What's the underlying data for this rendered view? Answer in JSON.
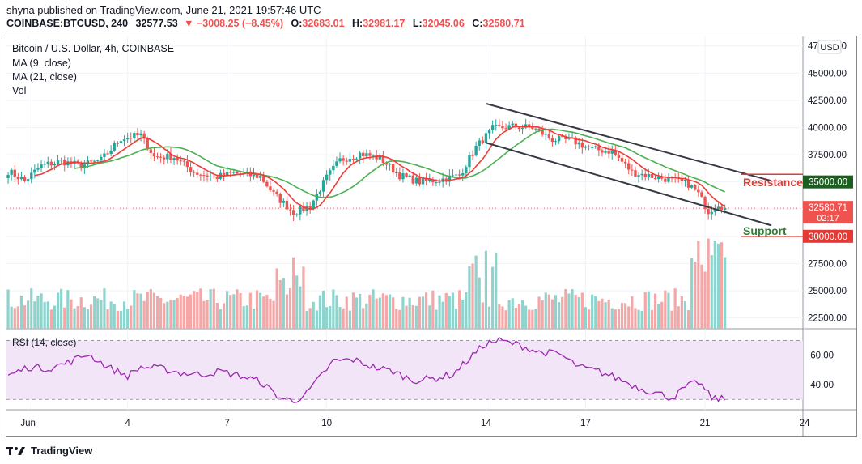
{
  "header": {
    "publish_line": "shyna published on TradingView.com, June 21, 2021 19:57:46 UTC",
    "symbol": "COINBASE:BTCUSD, 240",
    "last": "32577.53",
    "down_arrow": "▼",
    "change": "−3008.25 (−8.45%)",
    "o_label": "O:",
    "o_value": "32683.01",
    "h_label": "H:",
    "h_value": "32981.17",
    "l_label": "L:",
    "l_value": "32045.06",
    "c_label": "C:",
    "c_value": "32580.71"
  },
  "legend": {
    "title": "Bitcoin / U.S. Dollar, 4h, COINBASE",
    "ma9": "MA (9, close)",
    "ma21": "MA (21, close)",
    "vol": "Vol",
    "rsi": "RSI (14, close)"
  },
  "currency_badge": "USD",
  "annotations": {
    "resistance": "Resistance",
    "support": "Support",
    "resistance_price": "35000.00",
    "support_price": "30000.00",
    "current_price": "32580.71",
    "countdown": "02:17"
  },
  "footer": {
    "brand": "TradingView"
  },
  "colors": {
    "up": "#26a69a",
    "down": "#ef5350",
    "up_vol": "#8fd3cd",
    "down_vol": "#f5a6a6",
    "ma9": "#ef3b36",
    "ma21": "#4caf50",
    "rsi": "#9c27b0",
    "rsi_band": "#f3e5f8",
    "resistance": "#e53935",
    "support": "#2e7d32",
    "trendline": "#363a45"
  },
  "chart_data": {
    "type": "candlestick",
    "timeframe": "4h",
    "price_axis": {
      "ticks": [
        22500,
        25000,
        27500,
        30000,
        32500,
        35000,
        37500,
        40000,
        42500,
        45000,
        47500
      ],
      "tick_labels": [
        "22500.00",
        "25000.00",
        "27500.00",
        "30000.00",
        "32500.00",
        "35000.00",
        "37500.00",
        "40000.00",
        "42500.00",
        "45000.00",
        "47500.00"
      ],
      "range": [
        21500,
        48300
      ]
    },
    "rsi_axis": {
      "ticks": [
        40,
        60
      ],
      "tick_labels": [
        "40.00",
        "60.00"
      ],
      "band": [
        30,
        70
      ],
      "range": [
        23,
        78
      ]
    },
    "x_axis": {
      "labels": [
        "Jun",
        "4",
        "7",
        "10",
        "14",
        "17",
        "21",
        "24"
      ],
      "label_bar_index": [
        6,
        36,
        66,
        96,
        144,
        174,
        210,
        240
      ]
    },
    "bar_count": 240,
    "close_anchors": [
      [
        0,
        36000
      ],
      [
        5,
        35100
      ],
      [
        10,
        36500
      ],
      [
        16,
        36900
      ],
      [
        22,
        36500
      ],
      [
        28,
        37000
      ],
      [
        34,
        39000
      ],
      [
        40,
        39300
      ],
      [
        44,
        37300
      ],
      [
        50,
        37300
      ],
      [
        56,
        35900
      ],
      [
        62,
        35400
      ],
      [
        68,
        35800
      ],
      [
        76,
        35500
      ],
      [
        80,
        33900
      ],
      [
        86,
        32200
      ],
      [
        91,
        32800
      ],
      [
        96,
        35400
      ],
      [
        100,
        37000
      ],
      [
        106,
        37600
      ],
      [
        112,
        37200
      ],
      [
        118,
        35600
      ],
      [
        124,
        35000
      ],
      [
        130,
        35200
      ],
      [
        136,
        35600
      ],
      [
        141,
        38200
      ],
      [
        146,
        39900
      ],
      [
        152,
        40100
      ],
      [
        158,
        40000
      ],
      [
        164,
        38900
      ],
      [
        170,
        38800
      ],
      [
        176,
        38000
      ],
      [
        182,
        37800
      ],
      [
        188,
        35900
      ],
      [
        194,
        35500
      ],
      [
        200,
        35200
      ],
      [
        205,
        34800
      ],
      [
        208,
        33900
      ],
      [
        211,
        32300
      ],
      [
        214,
        33000
      ],
      [
        216,
        32580
      ]
    ],
    "last_bar_index": 216,
    "annotated_levels": {
      "resistance": 35000,
      "support": 30000,
      "last_close": 32580.71
    },
    "trendlines": [
      {
        "name": "upper",
        "from": [
          144,
          42200
        ],
        "to": [
          230,
          35100
        ]
      },
      {
        "name": "lower",
        "from": [
          144,
          38600
        ],
        "to": [
          230,
          31000
        ]
      }
    ],
    "rsi_anchors": [
      [
        0,
        46
      ],
      [
        6,
        52
      ],
      [
        12,
        51
      ],
      [
        18,
        55
      ],
      [
        24,
        61
      ],
      [
        30,
        52
      ],
      [
        36,
        46
      ],
      [
        40,
        52
      ],
      [
        46,
        51
      ],
      [
        52,
        48
      ],
      [
        58,
        47
      ],
      [
        64,
        49
      ],
      [
        70,
        46
      ],
      [
        76,
        42
      ],
      [
        82,
        31
      ],
      [
        86,
        29
      ],
      [
        90,
        34
      ],
      [
        94,
        45
      ],
      [
        98,
        56
      ],
      [
        104,
        57
      ],
      [
        110,
        52
      ],
      [
        116,
        49
      ],
      [
        122,
        43
      ],
      [
        128,
        44
      ],
      [
        134,
        47
      ],
      [
        140,
        60
      ],
      [
        144,
        68
      ],
      [
        148,
        70
      ],
      [
        154,
        67
      ],
      [
        160,
        62
      ],
      [
        166,
        61
      ],
      [
        172,
        52
      ],
      [
        178,
        49
      ],
      [
        184,
        44
      ],
      [
        190,
        38
      ],
      [
        196,
        34
      ],
      [
        200,
        31
      ],
      [
        204,
        38
      ],
      [
        208,
        42
      ],
      [
        212,
        31
      ],
      [
        216,
        30
      ]
    ],
    "volume_pattern": "moderate bars throughout, spikes near Jun 8 and Jun 14, tallest bars at the right edge around Jun 21"
  }
}
